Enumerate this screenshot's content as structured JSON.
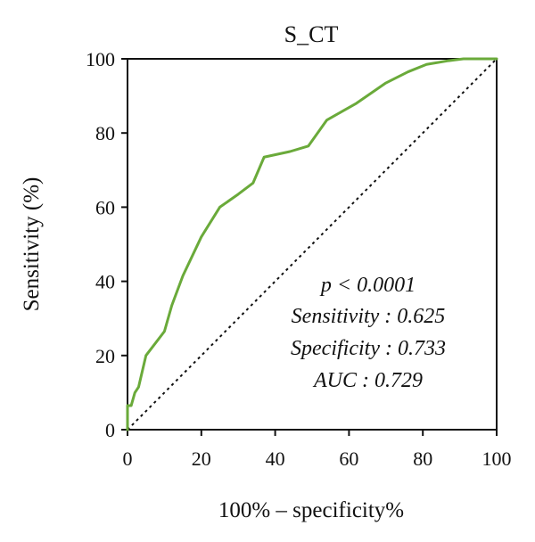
{
  "chart_data": {
    "type": "line",
    "title": "S_CT",
    "xlabel": "100% – specificity%",
    "ylabel": "Sensitivity (%)",
    "xlim": [
      0,
      100
    ],
    "ylim": [
      0,
      100
    ],
    "xticks": [
      "0",
      "20",
      "40",
      "60",
      "80",
      "100"
    ],
    "yticks": [
      "0",
      "20",
      "40",
      "60",
      "80",
      "100"
    ],
    "grid": false,
    "series": [
      {
        "color": "#6aaa3a",
        "x": [
          0,
          0,
          1,
          2,
          3,
          5,
          10,
          12,
          15,
          20,
          25,
          30,
          34,
          37,
          44,
          49,
          54,
          62,
          70,
          76,
          81,
          87,
          91,
          100
        ],
        "y": [
          0,
          6.5,
          6.5,
          10,
          11.5,
          20,
          26.5,
          33.5,
          41.5,
          52,
          60,
          63.5,
          66.5,
          73.5,
          75,
          76.5,
          83.5,
          88,
          93.5,
          96.5,
          98.5,
          99.5,
          100,
          100
        ]
      }
    ],
    "reference_line": {
      "style": "dotted",
      "color": "#111111",
      "x": [
        0,
        100
      ],
      "y": [
        0,
        100
      ]
    },
    "annotations": [
      "p < 0.0001",
      "Sensitivity : 0.625",
      "Specificity : 0.733",
      "AUC : 0.729"
    ]
  }
}
